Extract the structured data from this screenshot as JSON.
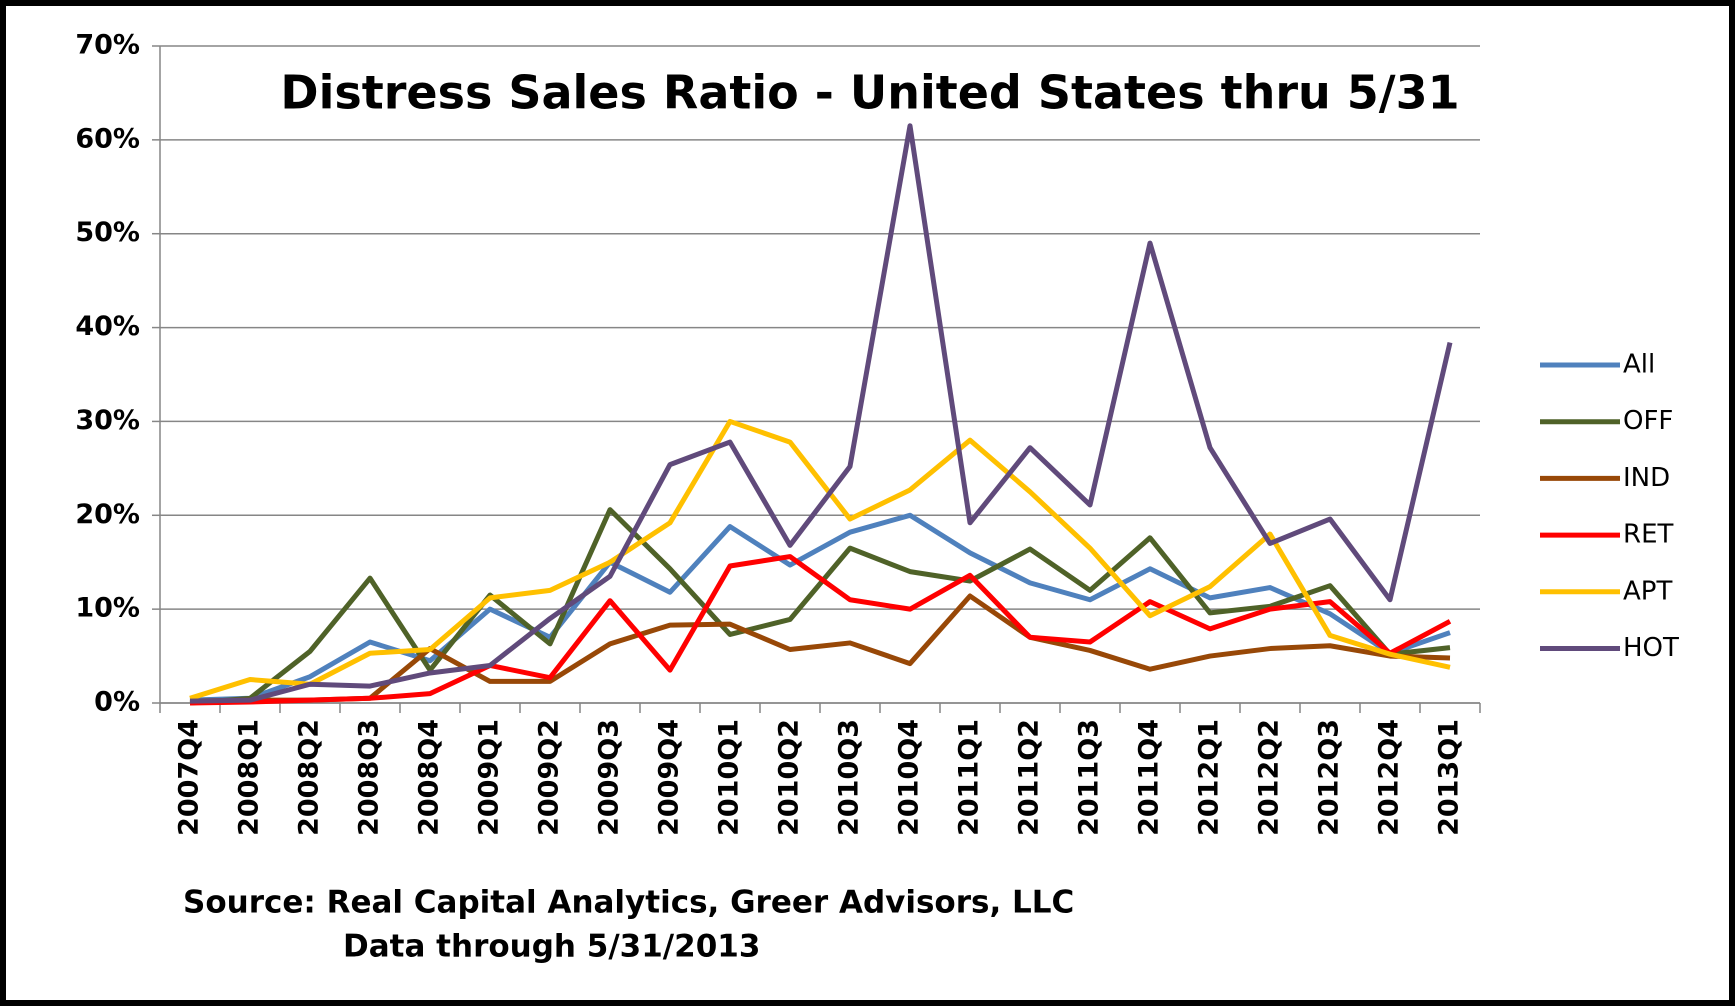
{
  "chart_data": {
    "type": "line",
    "title": "Distress Sales Ratio - United States thru 5/31",
    "annotations": [
      "Source: Real Capital Analytics, Greer Advisors, LLC",
      "Data through 5/31/2013"
    ],
    "categories": [
      "2007Q4",
      "2008Q1",
      "2008Q2",
      "2008Q3",
      "2008Q4",
      "2009Q1",
      "2009Q2",
      "2009Q3",
      "2009Q4",
      "2010Q1",
      "2010Q2",
      "2010Q3",
      "2010Q4",
      "2011Q1",
      "2011Q2",
      "2011Q3",
      "2011Q4",
      "2012Q1",
      "2012Q2",
      "2012Q3",
      "2012Q4",
      "2013Q1"
    ],
    "series": [
      {
        "name": "All",
        "color": "#4f81bd",
        "values": [
          0.3,
          0.5,
          2.8,
          6.5,
          4.5,
          10,
          7,
          15,
          11.8,
          18.8,
          14.7,
          18.2,
          20,
          16,
          12.8,
          11,
          14.3,
          11.2,
          12.3,
          9.5,
          5.3,
          7.5
        ]
      },
      {
        "name": "OFF",
        "color": "#4f6228",
        "values": [
          0,
          0.5,
          5.5,
          13.3,
          3.5,
          11.5,
          6.3,
          20.6,
          14.3,
          7.3,
          8.9,
          16.5,
          14,
          13,
          16.4,
          12,
          17.6,
          9.6,
          10.3,
          12.5,
          5.2,
          5.9
        ]
      },
      {
        "name": "IND",
        "color": "#984807",
        "values": [
          0.2,
          0.3,
          0.3,
          0.5,
          5.8,
          2.3,
          2.3,
          6.3,
          8.3,
          8.4,
          5.7,
          6.4,
          4.2,
          11.4,
          7,
          5.6,
          3.6,
          5,
          5.8,
          6.1,
          5,
          4.8
        ]
      },
      {
        "name": "RET",
        "color": "#ff0000",
        "values": [
          0,
          0.1,
          0.3,
          0.5,
          1,
          4,
          2.7,
          10.9,
          3.5,
          14.6,
          15.6,
          11,
          10,
          13.6,
          7,
          6.5,
          10.8,
          7.9,
          10,
          10.8,
          5.3,
          8.7
        ]
      },
      {
        "name": "APT",
        "color": "#ffc000",
        "values": [
          0.5,
          2.5,
          2,
          5.3,
          5.7,
          11.2,
          12,
          15,
          19.2,
          30,
          27.8,
          19.6,
          22.7,
          28,
          22.5,
          16.5,
          9.3,
          12.4,
          18,
          7.2,
          5.2,
          3.8
        ]
      },
      {
        "name": "HOT",
        "color": "#604a7b",
        "values": [
          0.2,
          0.3,
          2,
          1.8,
          3.2,
          4,
          9,
          13.5,
          25.4,
          27.8,
          16.8,
          25.2,
          61.5,
          19.2,
          27.2,
          21.1,
          49,
          27.2,
          17,
          19.6,
          11,
          38.4
        ]
      }
    ],
    "ylim": [
      0,
      70
    ],
    "yticks": [
      {
        "value": 0,
        "label": "0%"
      },
      {
        "value": 10,
        "label": "10%"
      },
      {
        "value": 20,
        "label": "20%"
      },
      {
        "value": 30,
        "label": "30%"
      },
      {
        "value": 40,
        "label": "40%"
      },
      {
        "value": 50,
        "label": "50%"
      },
      {
        "value": 60,
        "label": "60%"
      },
      {
        "value": 70,
        "label": "70%"
      }
    ],
    "grid": true,
    "legend": "right"
  }
}
